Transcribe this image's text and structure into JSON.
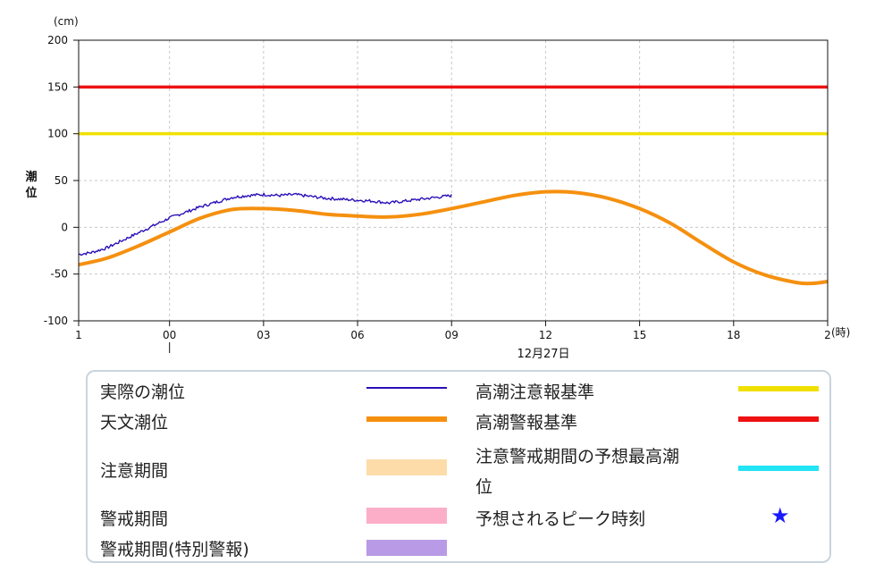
{
  "chart_data": {
    "type": "line",
    "ylabel": "潮位",
    "yunit": "(cm)",
    "xunit": "(時)",
    "ylim": [
      -100,
      200
    ],
    "yticks": [
      "200",
      "150",
      "100",
      "50",
      "0",
      "-50",
      "-100"
    ],
    "xticks": [
      "1",
      "00",
      "03",
      "06",
      "09",
      "12",
      "15",
      "18",
      "2"
    ],
    "xticks_hours": [
      -3,
      0,
      3,
      6,
      9,
      12,
      15,
      18,
      21
    ],
    "xlim_hours": [
      -2.9,
      21
    ],
    "date_label": "12月27日",
    "grid": true,
    "reference_lines": [
      {
        "name": "高潮警報基準",
        "value": 150,
        "color": "#ee1111"
      },
      {
        "name": "高潮注意報基準",
        "value": 100,
        "color": "#f0e000"
      }
    ],
    "series": [
      {
        "name": "天文潮位",
        "color": "#f5900f",
        "x": [
          -2.9,
          -2,
          -1,
          0,
          1,
          2,
          3,
          4,
          5,
          6,
          7,
          8,
          9,
          10,
          11,
          12,
          13,
          14,
          15,
          16,
          17,
          18,
          19,
          20,
          20.5,
          21
        ],
        "y": [
          -40,
          -33,
          -20,
          -5,
          10,
          19,
          20,
          18,
          14,
          12,
          11,
          14,
          20,
          27,
          34,
          38,
          37,
          31,
          20,
          4,
          -17,
          -37,
          -51,
          -59,
          -60,
          -58
        ]
      },
      {
        "name": "実際の潮位",
        "color": "#2a10b8",
        "x": [
          -2.9,
          -2.5,
          -2,
          -1.5,
          -1,
          -0.5,
          0,
          0.5,
          1,
          1.5,
          2,
          2.5,
          3,
          3.5,
          4,
          4.5,
          5,
          5.5,
          6,
          6.5,
          7,
          7.5,
          8,
          8.5,
          9
        ],
        "y": [
          -29,
          -27,
          -22,
          -14,
          -6,
          2,
          10,
          16,
          22,
          27,
          32,
          34,
          35,
          34,
          35,
          33,
          31,
          30,
          29,
          28,
          26,
          28,
          30,
          32,
          34
        ]
      }
    ]
  },
  "legend": {
    "items": [
      {
        "label": "実際の潮位",
        "color": "#2a10b8",
        "kind": "line-thin"
      },
      {
        "label": "天文潮位",
        "color": "#f5900f",
        "kind": "line-thick"
      },
      {
        "label": "注意期間",
        "color": "#fddcaa",
        "kind": "band"
      },
      {
        "label": "警戒期間",
        "color": "#fcaec8",
        "kind": "band"
      },
      {
        "label": "警戒期間(特別警報)",
        "color": "#b99ae6",
        "kind": "band"
      },
      {
        "label": "高潮注意報基準",
        "color": "#f0e000",
        "kind": "line-thick"
      },
      {
        "label": "高潮警報基準",
        "color": "#ee1111",
        "kind": "line-thick"
      },
      {
        "label": "注意警戒期間の予想最高潮",
        "color": "#22e4f4",
        "kind": "line-thick"
      },
      {
        "label": "位",
        "kind": "continuation"
      },
      {
        "label": "予想されるピーク時刻",
        "color": "#1a1aff",
        "kind": "star",
        "icon": "star-icon"
      }
    ]
  }
}
